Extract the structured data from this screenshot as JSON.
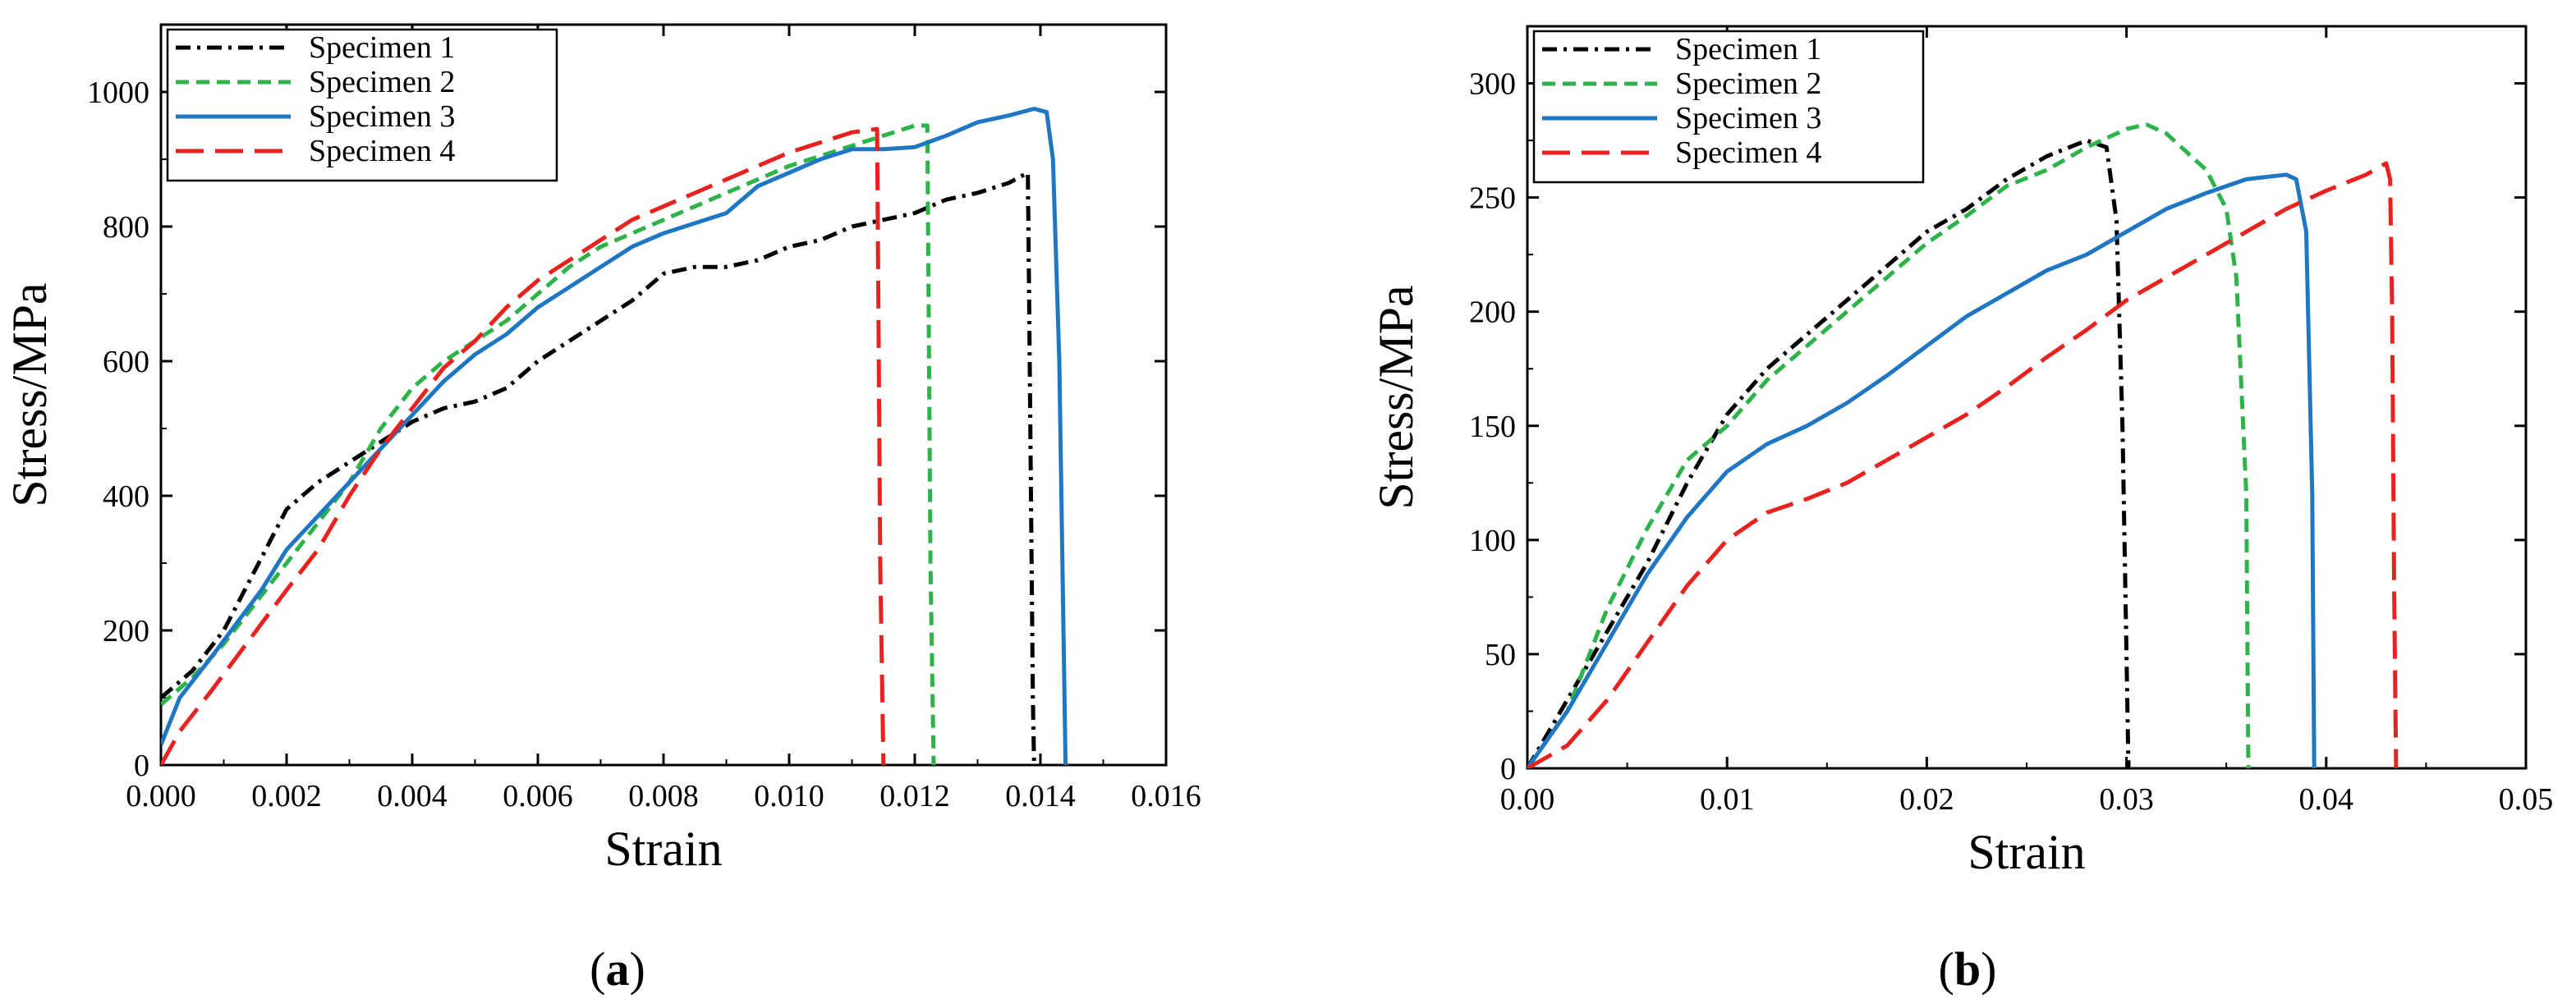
{
  "chart_data": [
    {
      "type": "line",
      "panel": "a",
      "caption_open": "(",
      "caption_letter": "a",
      "caption_close": ")",
      "xlabel": "Strain",
      "ylabel": "Stress/MPa",
      "xlim": [
        0,
        0.016
      ],
      "ylim": [
        0,
        1100
      ],
      "xticks": [
        0,
        0.002,
        0.004,
        0.006,
        0.008,
        0.01,
        0.012,
        0.014,
        0.016
      ],
      "xtick_labels": [
        "0.000",
        "0.002",
        "0.004",
        "0.006",
        "0.008",
        "0.010",
        "0.012",
        "0.014",
        "0.016"
      ],
      "yticks": [
        0,
        200,
        400,
        600,
        800,
        1000
      ],
      "ytick_labels": [
        "0",
        "200",
        "400",
        "600",
        "800",
        "1000"
      ],
      "legend_position": "top-left",
      "series": [
        {
          "name": "Specimen 1",
          "color": "#000000",
          "dash": "dashdot",
          "points": [
            [
              0,
              100
            ],
            [
              0.0005,
              140
            ],
            [
              0.001,
              200
            ],
            [
              0.0015,
              290
            ],
            [
              0.002,
              380
            ],
            [
              0.0025,
              420
            ],
            [
              0.003,
              450
            ],
            [
              0.0035,
              480
            ],
            [
              0.004,
              510
            ],
            [
              0.0045,
              530
            ],
            [
              0.005,
              540
            ],
            [
              0.0055,
              560
            ],
            [
              0.006,
              600
            ],
            [
              0.0065,
              630
            ],
            [
              0.007,
              660
            ],
            [
              0.0075,
              690
            ],
            [
              0.008,
              730
            ],
            [
              0.0085,
              740
            ],
            [
              0.009,
              740
            ],
            [
              0.0095,
              750
            ],
            [
              0.01,
              770
            ],
            [
              0.0105,
              780
            ],
            [
              0.011,
              800
            ],
            [
              0.0115,
              810
            ],
            [
              0.012,
              820
            ],
            [
              0.0125,
              840
            ],
            [
              0.013,
              850
            ],
            [
              0.0135,
              865
            ],
            [
              0.0138,
              880
            ],
            [
              0.01382,
              700
            ],
            [
              0.01385,
              400
            ],
            [
              0.01388,
              100
            ],
            [
              0.0139,
              0
            ]
          ]
        },
        {
          "name": "Specimen 2",
          "color": "#2db34a",
          "dash": "dashed",
          "points": [
            [
              0,
              90
            ],
            [
              0.0005,
              130
            ],
            [
              0.001,
              180
            ],
            [
              0.0015,
              240
            ],
            [
              0.002,
              300
            ],
            [
              0.0025,
              360
            ],
            [
              0.003,
              420
            ],
            [
              0.0035,
              500
            ],
            [
              0.004,
              560
            ],
            [
              0.0045,
              600
            ],
            [
              0.005,
              630
            ],
            [
              0.0055,
              660
            ],
            [
              0.006,
              700
            ],
            [
              0.0065,
              740
            ],
            [
              0.007,
              770
            ],
            [
              0.0075,
              790
            ],
            [
              0.008,
              810
            ],
            [
              0.0085,
              830
            ],
            [
              0.009,
              850
            ],
            [
              0.0095,
              870
            ],
            [
              0.01,
              890
            ],
            [
              0.0105,
              905
            ],
            [
              0.011,
              920
            ],
            [
              0.0115,
              935
            ],
            [
              0.012,
              950
            ],
            [
              0.0122,
              950
            ],
            [
              0.01222,
              700
            ],
            [
              0.01225,
              300
            ],
            [
              0.0123,
              0
            ]
          ]
        },
        {
          "name": "Specimen 3",
          "color": "#1f77c4",
          "dash": "solid",
          "points": [
            [
              0,
              30
            ],
            [
              0.0003,
              100
            ],
            [
              0.0008,
              160
            ],
            [
              0.0012,
              210
            ],
            [
              0.0016,
              260
            ],
            [
              0.002,
              320
            ],
            [
              0.0025,
              370
            ],
            [
              0.003,
              420
            ],
            [
              0.0035,
              470
            ],
            [
              0.004,
              520
            ],
            [
              0.0045,
              570
            ],
            [
              0.005,
              610
            ],
            [
              0.0055,
              640
            ],
            [
              0.006,
              680
            ],
            [
              0.0065,
              710
            ],
            [
              0.007,
              740
            ],
            [
              0.0075,
              770
            ],
            [
              0.008,
              790
            ],
            [
              0.0085,
              805
            ],
            [
              0.009,
              820
            ],
            [
              0.0095,
              860
            ],
            [
              0.01,
              880
            ],
            [
              0.0105,
              900
            ],
            [
              0.011,
              915
            ],
            [
              0.0115,
              915
            ],
            [
              0.012,
              918
            ],
            [
              0.0125,
              935
            ],
            [
              0.013,
              955
            ],
            [
              0.0135,
              965
            ],
            [
              0.0139,
              975
            ],
            [
              0.0141,
              970
            ],
            [
              0.0142,
              900
            ],
            [
              0.0143,
              600
            ],
            [
              0.01435,
              300
            ],
            [
              0.0144,
              0
            ]
          ]
        },
        {
          "name": "Specimen 4",
          "color": "#e8231f",
          "dash": "longdash",
          "points": [
            [
              0,
              0
            ],
            [
              0.0003,
              50
            ],
            [
              0.0008,
              110
            ],
            [
              0.0012,
              160
            ],
            [
              0.0016,
              210
            ],
            [
              0.002,
              260
            ],
            [
              0.0025,
              320
            ],
            [
              0.003,
              400
            ],
            [
              0.0035,
              470
            ],
            [
              0.004,
              530
            ],
            [
              0.0045,
              590
            ],
            [
              0.005,
              630
            ],
            [
              0.0055,
              680
            ],
            [
              0.006,
              720
            ],
            [
              0.0065,
              750
            ],
            [
              0.007,
              780
            ],
            [
              0.0075,
              810
            ],
            [
              0.008,
              830
            ],
            [
              0.0085,
              850
            ],
            [
              0.009,
              870
            ],
            [
              0.0095,
              890
            ],
            [
              0.01,
              910
            ],
            [
              0.0105,
              925
            ],
            [
              0.011,
              940
            ],
            [
              0.0114,
              945
            ],
            [
              0.01142,
              700
            ],
            [
              0.01145,
              300
            ],
            [
              0.0115,
              0
            ]
          ]
        }
      ]
    },
    {
      "type": "line",
      "panel": "b",
      "caption_open": "(",
      "caption_letter": "b",
      "caption_close": ")",
      "xlabel": "Strain",
      "ylabel": "Stress/MPa",
      "xlim": [
        0,
        0.05
      ],
      "ylim": [
        0,
        325
      ],
      "xticks": [
        0,
        0.01,
        0.02,
        0.03,
        0.04,
        0.05
      ],
      "xtick_labels": [
        "0.00",
        "0.01",
        "0.02",
        "0.03",
        "0.04",
        "0.05"
      ],
      "yticks": [
        0,
        50,
        100,
        150,
        200,
        250,
        300
      ],
      "ytick_labels": [
        "0",
        "50",
        "100",
        "150",
        "200",
        "250",
        "300"
      ],
      "legend_position": "top-left",
      "series": [
        {
          "name": "Specimen 1",
          "color": "#000000",
          "dash": "dashdot",
          "points": [
            [
              0,
              0
            ],
            [
              0.002,
              30
            ],
            [
              0.004,
              60
            ],
            [
              0.006,
              90
            ],
            [
              0.008,
              125
            ],
            [
              0.01,
              155
            ],
            [
              0.012,
              175
            ],
            [
              0.014,
              190
            ],
            [
              0.016,
              205
            ],
            [
              0.018,
              220
            ],
            [
              0.02,
              235
            ],
            [
              0.022,
              245
            ],
            [
              0.024,
              258
            ],
            [
              0.026,
              268
            ],
            [
              0.028,
              275
            ],
            [
              0.029,
              272
            ],
            [
              0.0295,
              240
            ],
            [
              0.0298,
              150
            ],
            [
              0.03,
              50
            ],
            [
              0.0301,
              0
            ]
          ]
        },
        {
          "name": "Specimen 2",
          "color": "#2db34a",
          "dash": "dashed",
          "points": [
            [
              0,
              0
            ],
            [
              0.002,
              25
            ],
            [
              0.004,
              70
            ],
            [
              0.006,
              105
            ],
            [
              0.008,
              135
            ],
            [
              0.01,
              150
            ],
            [
              0.012,
              170
            ],
            [
              0.014,
              185
            ],
            [
              0.016,
              200
            ],
            [
              0.018,
              215
            ],
            [
              0.02,
              230
            ],
            [
              0.022,
              242
            ],
            [
              0.024,
              255
            ],
            [
              0.026,
              262
            ],
            [
              0.028,
              272
            ],
            [
              0.03,
              280
            ],
            [
              0.031,
              282
            ],
            [
              0.032,
              278
            ],
            [
              0.033,
              270
            ],
            [
              0.034,
              262
            ],
            [
              0.035,
              245
            ],
            [
              0.0355,
              215
            ],
            [
              0.036,
              120
            ],
            [
              0.0361,
              0
            ]
          ]
        },
        {
          "name": "Specimen 3",
          "color": "#1f77c4",
          "dash": "solid",
          "points": [
            [
              0,
              0
            ],
            [
              0.002,
              25
            ],
            [
              0.004,
              55
            ],
            [
              0.006,
              85
            ],
            [
              0.008,
              110
            ],
            [
              0.01,
              130
            ],
            [
              0.012,
              142
            ],
            [
              0.014,
              150
            ],
            [
              0.016,
              160
            ],
            [
              0.018,
              172
            ],
            [
              0.02,
              185
            ],
            [
              0.022,
              198
            ],
            [
              0.024,
              208
            ],
            [
              0.026,
              218
            ],
            [
              0.028,
              225
            ],
            [
              0.03,
              235
            ],
            [
              0.032,
              245
            ],
            [
              0.034,
              252
            ],
            [
              0.036,
              258
            ],
            [
              0.038,
              260
            ],
            [
              0.0385,
              258
            ],
            [
              0.039,
              235
            ],
            [
              0.0393,
              120
            ],
            [
              0.0394,
              0
            ]
          ]
        },
        {
          "name": "Specimen 4",
          "color": "#e8231f",
          "dash": "longdash",
          "points": [
            [
              0,
              0
            ],
            [
              0.002,
              10
            ],
            [
              0.004,
              30
            ],
            [
              0.006,
              55
            ],
            [
              0.008,
              80
            ],
            [
              0.01,
              100
            ],
            [
              0.012,
              112
            ],
            [
              0.014,
              118
            ],
            [
              0.016,
              125
            ],
            [
              0.018,
              135
            ],
            [
              0.02,
              145
            ],
            [
              0.022,
              155
            ],
            [
              0.024,
              167
            ],
            [
              0.026,
              180
            ],
            [
              0.028,
              192
            ],
            [
              0.03,
              205
            ],
            [
              0.032,
              215
            ],
            [
              0.034,
              225
            ],
            [
              0.036,
              235
            ],
            [
              0.038,
              245
            ],
            [
              0.04,
              253
            ],
            [
              0.042,
              260
            ],
            [
              0.043,
              265
            ],
            [
              0.0432,
              258
            ],
            [
              0.0433,
              200
            ],
            [
              0.0434,
              80
            ],
            [
              0.0435,
              0
            ]
          ]
        }
      ]
    }
  ]
}
